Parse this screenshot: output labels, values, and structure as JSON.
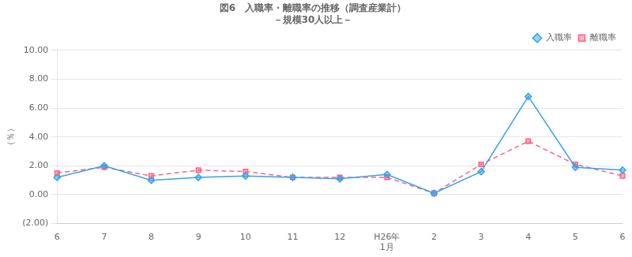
{
  "chart_data": {
    "type": "line",
    "title": "図6　入職率・離職率の推移（調査産業計）\n－規模30人以上－",
    "y_label": "（％）",
    "categories": [
      "6",
      "7",
      "8",
      "9",
      "10",
      "11",
      "12",
      "H26年\n1月",
      "2",
      "3",
      "4",
      "5",
      "6"
    ],
    "series": [
      {
        "name": "入職率",
        "values": [
          1.2,
          2.0,
          1.0,
          1.2,
          1.3,
          1.2,
          1.1,
          1.4,
          0.1,
          1.6,
          6.8,
          1.9,
          1.7
        ],
        "marker": "diamond",
        "line_style": "solid"
      },
      {
        "name": "離職率",
        "values": [
          1.5,
          1.9,
          1.3,
          1.7,
          1.6,
          1.2,
          1.2,
          1.2,
          0.1,
          2.1,
          3.7,
          2.1,
          1.3
        ],
        "marker": "square",
        "line_style": "dashed"
      }
    ],
    "ylim": [
      -2.0,
      10.0
    ],
    "yticks": [
      {
        "value": -2.0,
        "label": "(2.00)"
      },
      {
        "value": 0.0,
        "label": "0.00"
      },
      {
        "value": 2.0,
        "label": "2.00"
      },
      {
        "value": 4.0,
        "label": "4.00"
      },
      {
        "value": 6.0,
        "label": "6.00"
      },
      {
        "value": 8.0,
        "label": "8.00"
      },
      {
        "value": 10.0,
        "label": "10.00"
      }
    ],
    "grid": true,
    "legend": "upper right"
  }
}
